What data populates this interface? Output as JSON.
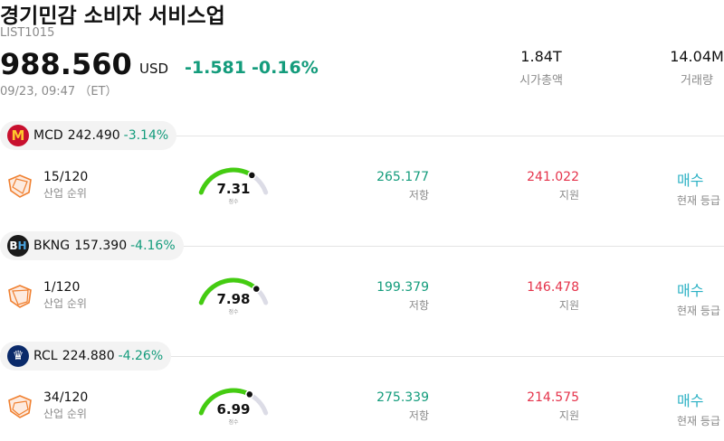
{
  "header": {
    "title": "경기민감 소비자 서비스업",
    "ticker": "LIST1015",
    "price": "988.560",
    "currency": "USD",
    "change_abs": "-1.581",
    "change_pct": "-0.16%",
    "timestamp": "09/23, 09:47 （ET）"
  },
  "stats": {
    "market_cap": {
      "value": "1.84T",
      "label": "시가총액"
    },
    "volume": {
      "value": "14.04M",
      "label": "거래량"
    }
  },
  "labels": {
    "rank": "산업 순위",
    "score": "점수",
    "resistance": "저항",
    "support": "지원",
    "rating": "현재 등급"
  },
  "colors": {
    "up_green": "#149c7c",
    "support_red": "#e5334b",
    "rating_teal": "#2bb1c4",
    "gauge_green": "#44cc11",
    "gauge_track": "#dcdce6"
  },
  "stocks": [
    {
      "symbol": "MCD",
      "price": "242.490",
      "change_pct": "-3.14%",
      "logo_icon": "mcdonalds-logo-icon",
      "logo_text": "M",
      "rank": "15/120",
      "score": "7.31",
      "score_fraction": 0.731,
      "resistance": "265.177",
      "support": "241.022",
      "rating": "매수"
    },
    {
      "symbol": "BKNG",
      "price": "157.390",
      "change_pct": "-4.16%",
      "logo_icon": "booking-logo-icon",
      "logo_text": "B",
      "logo_text2": "H",
      "rank": "1/120",
      "score": "7.98",
      "score_fraction": 0.798,
      "resistance": "199.379",
      "support": "146.478",
      "rating": "매수"
    },
    {
      "symbol": "RCL",
      "price": "224.880",
      "change_pct": "-4.26%",
      "logo_icon": "royal-caribbean-logo-icon",
      "logo_text": "♛",
      "rank": "34/120",
      "score": "6.99",
      "score_fraction": 0.699,
      "resistance": "275.339",
      "support": "214.575",
      "rating": "매수"
    }
  ]
}
